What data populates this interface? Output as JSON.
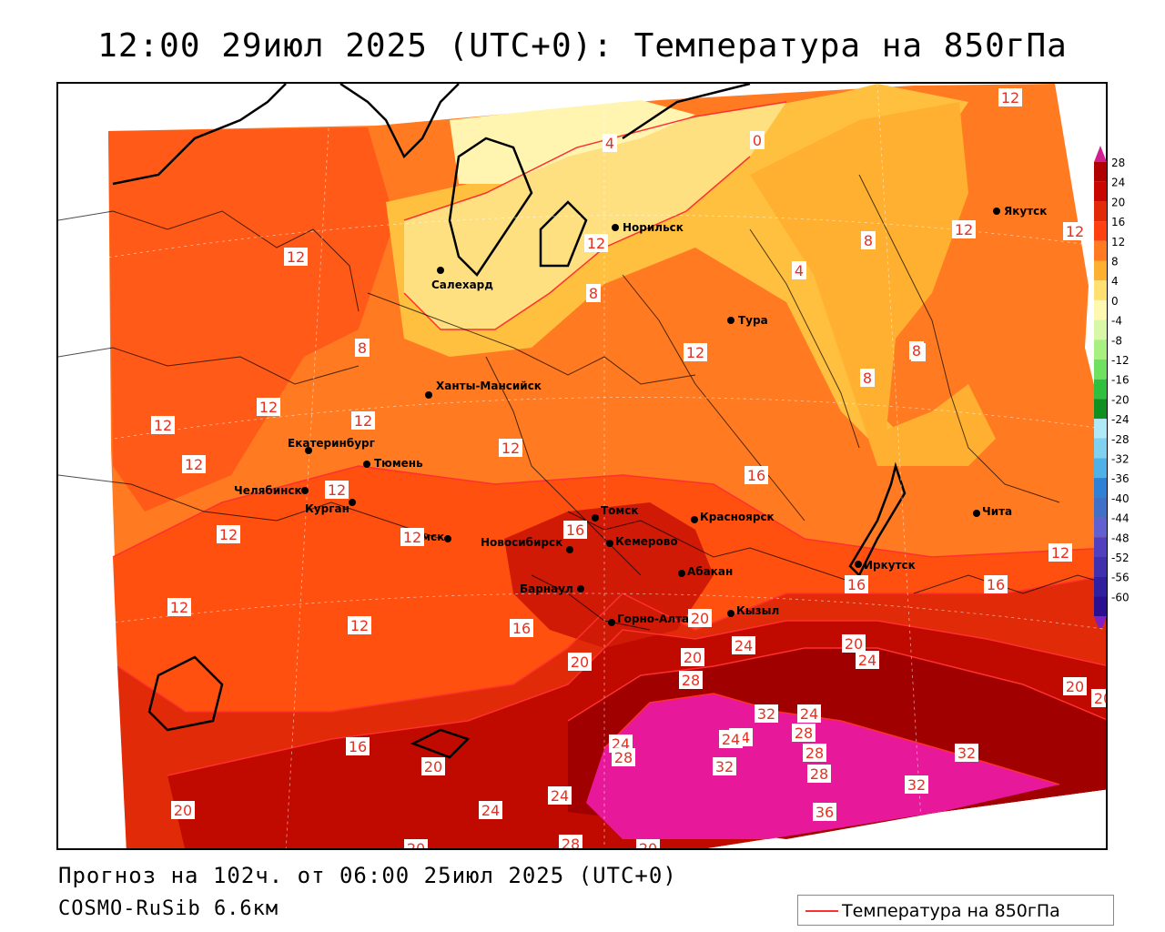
{
  "title": "12:00 29июл 2025 (UTC+0): Температура на 850гПа",
  "forecast_line": "Прогноз на 102ч. от 06:00 25июл 2025 (UTC+0)",
  "model_line": "COSMO-RuSib 6.6км",
  "legend_label": "Температура на 850гПа",
  "colors": {
    "line": "#ff3030",
    "bands": {
      "t0": "#fff5b0",
      "t4": "#ffe080",
      "t8": "#ffc040",
      "t12": "#ff7a20",
      "t16": "#ff5010",
      "t20": "#e02a08",
      "t24": "#c00a00",
      "t28": "#a00000",
      "t32": "#e8189a"
    }
  },
  "colorbar": {
    "ticks": [
      "28",
      "24",
      "20",
      "16",
      "12",
      "8",
      "4",
      "0",
      "-4",
      "-8",
      "-12",
      "-16",
      "-20",
      "-24",
      "-28",
      "-32",
      "-36",
      "-40",
      "-44",
      "-48",
      "-52",
      "-56",
      "-60"
    ],
    "colors": [
      "#b00000",
      "#c80800",
      "#e02a08",
      "#ff4010",
      "#ff7a20",
      "#ffb030",
      "#ffe070",
      "#fff8b0",
      "#d8f8a8",
      "#a8f080",
      "#70e060",
      "#30c040",
      "#109020",
      "#b0e8f8",
      "#80d0f0",
      "#50b0e8",
      "#3080d8",
      "#4070c8",
      "#6060d0",
      "#5040c0",
      "#4030b0",
      "#3020a0",
      "#2a1090"
    ],
    "top_arrow_color": "#d02090",
    "bottom_arrow_color": "#8020c0"
  },
  "cities": [
    {
      "name": "Якутск"
    },
    {
      "name": "Норильск"
    },
    {
      "name": "Салехард"
    },
    {
      "name": "Тура"
    },
    {
      "name": "Ханты-Мансийск"
    },
    {
      "name": "Екатеринбург"
    },
    {
      "name": "Тюмень"
    },
    {
      "name": "Челябинск"
    },
    {
      "name": "Курган"
    },
    {
      "name": "Омск"
    },
    {
      "name": "Новосибирск"
    },
    {
      "name": "Томск"
    },
    {
      "name": "Кемерово"
    },
    {
      "name": "Красноярск"
    },
    {
      "name": "Абакан"
    },
    {
      "name": "Барнаул"
    },
    {
      "name": "Горно-Алтайск"
    },
    {
      "name": "Кызыл"
    },
    {
      "name": "Иркутск"
    },
    {
      "name": "Чита"
    }
  ],
  "contour_labels": [
    "12",
    "4",
    "0",
    "12",
    "12",
    "8",
    "8",
    "4",
    "8",
    "8",
    "12",
    "12",
    "12",
    "12",
    "8",
    "8",
    "12",
    "12",
    "12",
    "12",
    "16",
    "12",
    "12",
    "12",
    "12",
    "16",
    "16",
    "16",
    "12",
    "12",
    "20",
    "16",
    "20",
    "24",
    "20",
    "24",
    "28",
    "20",
    "24",
    "20",
    "24",
    "32",
    "24",
    "28",
    "24",
    "32",
    "28",
    "28",
    "16",
    "20",
    "24",
    "28",
    "32",
    "32",
    "36",
    "20",
    "24",
    "20",
    "28",
    "20",
    "20"
  ]
}
